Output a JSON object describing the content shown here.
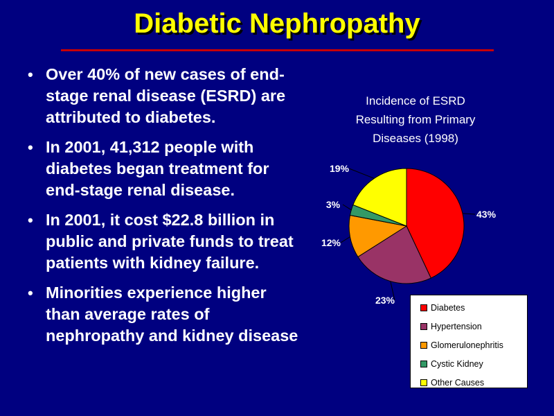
{
  "slide": {
    "title": "Diabetic Nephropathy",
    "bullets": [
      "Over 40% of new cases of end-stage renal disease (ESRD) are attributed to diabetes.",
      "In 2001, 41,312 people with diabetes began treatment for end-stage renal disease.",
      "In 2001, it cost $22.8 billion in public and private funds to treat patients with kidney failure.",
      "Minorities experience higher than average rates of nephropathy and kidney disease"
    ]
  },
  "chart_data": {
    "type": "pie",
    "title_lines": [
      "Incidence of ESRD",
      "Resulting from Primary",
      "Diseases (1998)"
    ],
    "slices": [
      {
        "name": "Diabetes",
        "value": 43,
        "label": "43%",
        "color": "#ff0000"
      },
      {
        "name": "Hypertension",
        "value": 23,
        "label": "23%",
        "color": "#993366"
      },
      {
        "name": "Glomerulonephritis",
        "value": 12,
        "label": "12%",
        "color": "#ff9900"
      },
      {
        "name": "Cystic Kidney",
        "value": 3,
        "label": "3%",
        "color": "#339966"
      },
      {
        "name": "Other Causes",
        "value": 19,
        "label": "19%",
        "color": "#ffff00"
      }
    ],
    "start_angle_deg": 0,
    "direction": "clockwise",
    "legend_position": "bottom-right"
  }
}
